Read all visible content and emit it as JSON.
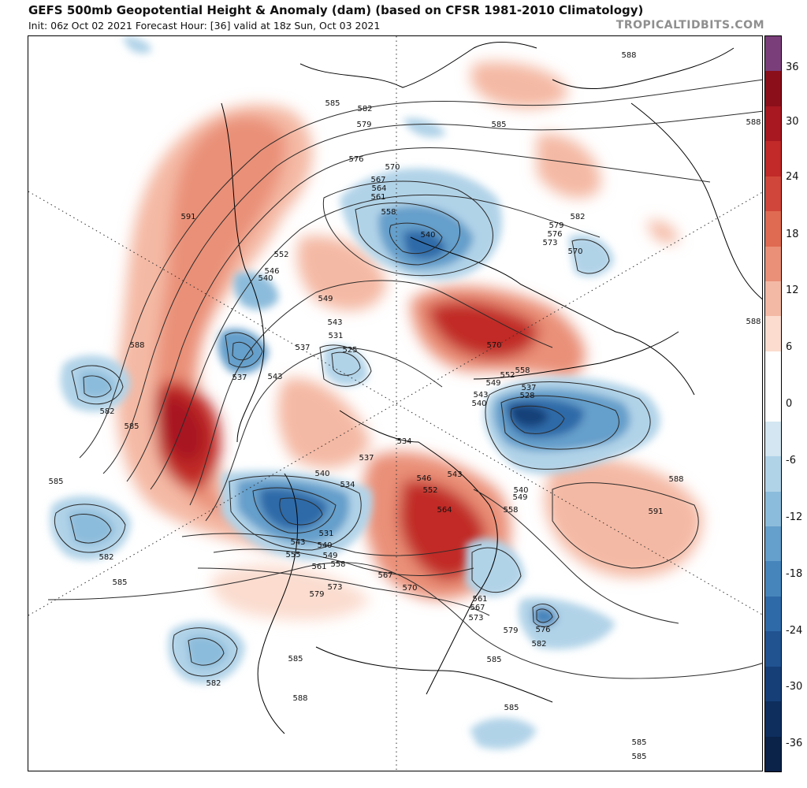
{
  "header": {
    "title": "GEFS 500mb Geopotential Height & Anomaly (dam) (based on CFSR 1981-2010 Climatology)",
    "subtitle": "Init: 06z Oct 02 2021   Forecast Hour: [36]   valid at 18z Sun, Oct 03 2021",
    "brand": "TROPICALTIDBITS.COM"
  },
  "colorbar": {
    "tick_labels": [
      "36",
      "30",
      "24",
      "18",
      "12",
      "6",
      "0",
      "-6",
      "-12",
      "-18",
      "-24",
      "-30",
      "-36"
    ],
    "colors": [
      "#7a3f7a",
      "#8b0f1a",
      "#a81820",
      "#c12a28",
      "#d1463a",
      "#df6b52",
      "#ea9078",
      "#f4b9a4",
      "#fbdccf",
      "#ffffff",
      "#ffffff",
      "#d3e6f1",
      "#b1d3e8",
      "#8cbcdb",
      "#659fcb",
      "#4685bc",
      "#2f6aa8",
      "#215391",
      "#163f78",
      "#0e2e5e",
      "#0b2249"
    ]
  },
  "map": {
    "contour_labels": [
      "588",
      "585",
      "582",
      "579",
      "576",
      "570",
      "567",
      "564",
      "561",
      "558",
      "555",
      "552",
      "549",
      "546",
      "543",
      "540",
      "537",
      "534",
      "531",
      "528",
      "525",
      "573",
      "591"
    ],
    "label_instances": [
      [
        "588",
        797,
        72
      ],
      [
        "588",
        955,
        157
      ],
      [
        "588",
        955,
        410
      ],
      [
        "588",
        173,
        440
      ],
      [
        "588",
        857,
        610
      ],
      [
        "588",
        380,
        888
      ],
      [
        "585",
        421,
        133
      ],
      [
        "585",
        632,
        160
      ],
      [
        "585",
        166,
        543
      ],
      [
        "585",
        70,
        613
      ],
      [
        "585",
        151,
        741
      ],
      [
        "585",
        374,
        838
      ],
      [
        "585",
        626,
        839
      ],
      [
        "585",
        648,
        900
      ],
      [
        "585",
        810,
        944
      ],
      [
        "585",
        810,
        962
      ],
      [
        "582",
        462,
        140
      ],
      [
        "582",
        135,
        524
      ],
      [
        "582",
        134,
        709
      ],
      [
        "582",
        270,
        869
      ],
      [
        "582",
        683,
        819
      ],
      [
        "582",
        732,
        277
      ],
      [
        "579",
        461,
        160
      ],
      [
        "579",
        705,
        288
      ],
      [
        "579",
        647,
        802
      ],
      [
        "579",
        401,
        756
      ],
      [
        "576",
        451,
        204
      ],
      [
        "576",
        703,
        299
      ],
      [
        "576",
        688,
        801
      ],
      [
        "573",
        697,
        310
      ],
      [
        "573",
        424,
        747
      ],
      [
        "573",
        603,
        786
      ],
      [
        "570",
        497,
        214
      ],
      [
        "570",
        729,
        321
      ],
      [
        "570",
        519,
        748
      ],
      [
        "570",
        626,
        440
      ],
      [
        "567",
        479,
        230
      ],
      [
        "567",
        488,
        732
      ],
      [
        "567",
        605,
        773
      ],
      [
        "564",
        480,
        241
      ],
      [
        "564",
        563,
        649
      ],
      [
        "561",
        479,
        252
      ],
      [
        "561",
        404,
        721
      ],
      [
        "561",
        608,
        762
      ],
      [
        "558",
        492,
        271
      ],
      [
        "558",
        647,
        649
      ],
      [
        "558",
        428,
        718
      ],
      [
        "558",
        662,
        472
      ],
      [
        "555",
        371,
        706
      ],
      [
        "552",
        356,
        325
      ],
      [
        "552",
        545,
        624
      ],
      [
        "552",
        643,
        478
      ],
      [
        "549",
        412,
        381
      ],
      [
        "549",
        659,
        633
      ],
      [
        "549",
        418,
        707
      ],
      [
        "549",
        625,
        488
      ],
      [
        "546",
        344,
        346
      ],
      [
        "546",
        537,
        609
      ],
      [
        "543",
        424,
        411
      ],
      [
        "543",
        348,
        480
      ],
      [
        "543",
        377,
        690
      ],
      [
        "543",
        576,
        604
      ],
      [
        "543",
        609,
        503
      ],
      [
        "540",
        336,
        355
      ],
      [
        "540",
        542,
        300
      ],
      [
        "540",
        408,
        603
      ],
      [
        "540",
        411,
        694
      ],
      [
        "540",
        660,
        624
      ],
      [
        "540",
        607,
        514
      ],
      [
        "537",
        383,
        443
      ],
      [
        "537",
        303,
        481
      ],
      [
        "537",
        464,
        583
      ],
      [
        "537",
        670,
        494
      ],
      [
        "534",
        512,
        562
      ],
      [
        "534",
        440,
        617
      ],
      [
        "531",
        425,
        428
      ],
      [
        "531",
        413,
        679
      ],
      [
        "528",
        668,
        504
      ],
      [
        "525",
        443,
        446
      ],
      [
        "591",
        831,
        651
      ],
      [
        "591",
        238,
        277
      ]
    ]
  }
}
